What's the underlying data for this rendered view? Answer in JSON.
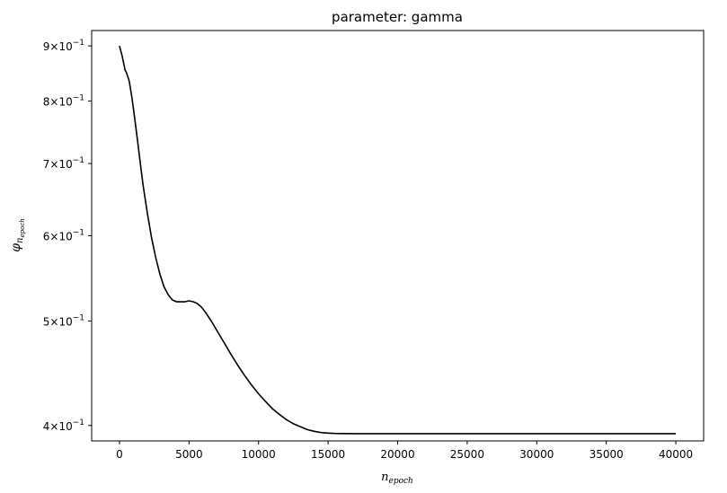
{
  "chart_data": {
    "type": "line",
    "title": "parameter: gamma",
    "xlabel": {
      "base": "n",
      "subscript": "epoch"
    },
    "ylabel": {
      "base": "φ",
      "subscript": "n",
      "subsubscript": "epoch"
    },
    "y_scale": "log",
    "xlim": [
      -2000,
      42000
    ],
    "ylim": [
      0.387,
      0.93
    ],
    "x_ticks": [
      {
        "value": 0,
        "label": "0"
      },
      {
        "value": 5000,
        "label": "5000"
      },
      {
        "value": 10000,
        "label": "10000"
      },
      {
        "value": 15000,
        "label": "15000"
      },
      {
        "value": 20000,
        "label": "20000"
      },
      {
        "value": 25000,
        "label": "25000"
      },
      {
        "value": 30000,
        "label": "30000"
      },
      {
        "value": 35000,
        "label": "35000"
      },
      {
        "value": 40000,
        "label": "40000"
      }
    ],
    "y_ticks": [
      {
        "value": 0.4,
        "mantissa": "4",
        "exponent": "−1"
      },
      {
        "value": 0.5,
        "mantissa": "5",
        "exponent": "−1"
      },
      {
        "value": 0.6,
        "mantissa": "6",
        "exponent": "−1"
      },
      {
        "value": 0.7,
        "mantissa": "7",
        "exponent": "−1"
      },
      {
        "value": 0.8,
        "mantissa": "8",
        "exponent": "−1"
      },
      {
        "value": 0.9,
        "mantissa": "9",
        "exponent": "−1"
      }
    ],
    "grid": false,
    "legend": "none",
    "series": [
      {
        "color": "#000000",
        "x": [
          0,
          200,
          400,
          500,
          700,
          900,
          1100,
          1300,
          1500,
          1700,
          2000,
          2300,
          2600,
          2900,
          3200,
          3500,
          3800,
          4100,
          4400,
          4700,
          5000,
          5300,
          5600,
          5900,
          6200,
          6600,
          7000,
          7500,
          8000,
          8500,
          9000,
          9500,
          10000,
          10500,
          11000,
          11500,
          12000,
          12500,
          13000,
          13500,
          14000,
          14500,
          15000,
          15500,
          16000,
          17000,
          18000,
          20000,
          25000,
          30000,
          35000,
          40000
        ],
        "y": [
          0.9,
          0.88,
          0.855,
          0.85,
          0.835,
          0.805,
          0.77,
          0.735,
          0.7,
          0.668,
          0.63,
          0.598,
          0.573,
          0.553,
          0.538,
          0.529,
          0.523,
          0.521,
          0.521,
          0.521,
          0.522,
          0.521,
          0.519,
          0.515,
          0.509,
          0.5,
          0.49,
          0.478,
          0.466,
          0.455,
          0.445,
          0.436,
          0.428,
          0.421,
          0.4145,
          0.4095,
          0.405,
          0.4015,
          0.399,
          0.3965,
          0.395,
          0.394,
          0.3935,
          0.3932,
          0.3931,
          0.393,
          0.393,
          0.393,
          0.393,
          0.393,
          0.393,
          0.393
        ]
      }
    ]
  }
}
